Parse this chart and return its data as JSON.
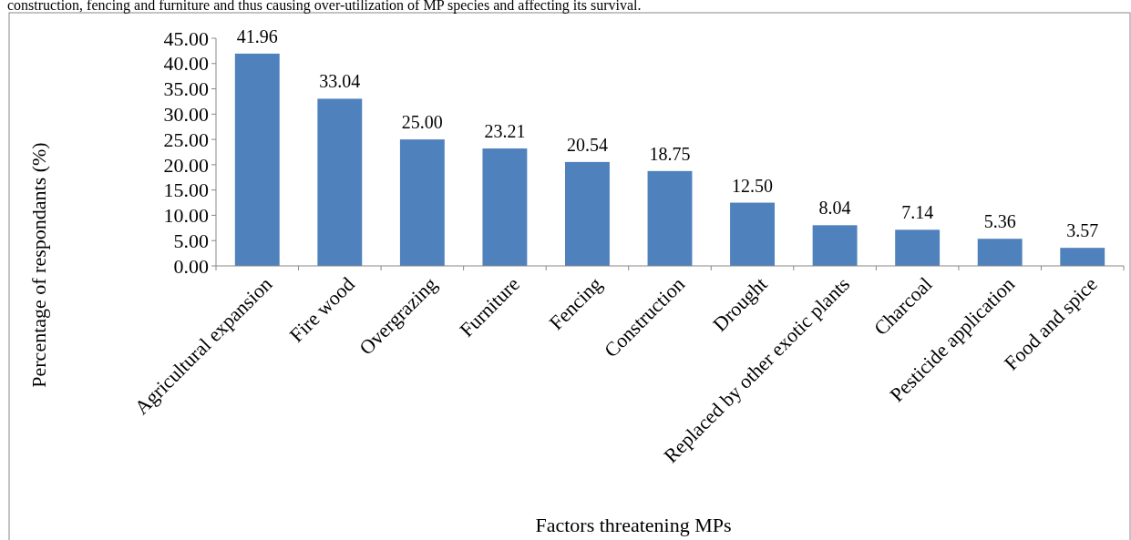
{
  "chart_data": {
    "type": "bar",
    "xlabel": "Factors threatening MPs",
    "ylabel": "Percentage of respondants (%)",
    "annotations": [
      "construction, fencing and furniture and thus causing over-utilization of MP species and affecting its survival."
    ],
    "categories": [
      "Agricultural expansion",
      "Fire wood",
      "Overgrazing",
      "Furniture",
      "Fencing",
      "Construction",
      "Drought",
      "Replaced by other exotic plants",
      "Charcoal",
      "Pesticide application",
      "Food and spice"
    ],
    "values": [
      41.96,
      33.04,
      25.0,
      23.21,
      20.54,
      18.75,
      12.5,
      8.04,
      7.14,
      5.36,
      3.57
    ],
    "value_labels": [
      "41.96",
      "33.04",
      "25.00",
      "23.21",
      "20.54",
      "18.75",
      "12.50",
      "8.04",
      "7.14",
      "5.36",
      "3.57"
    ],
    "color": "#4f81bd",
    "ylim": [
      0,
      45
    ],
    "yticks": [
      {
        "value": 0,
        "label": "0.00"
      },
      {
        "value": 5,
        "label": "5.00"
      },
      {
        "value": 10,
        "label": "10.00"
      },
      {
        "value": 15,
        "label": "15.00"
      },
      {
        "value": 20,
        "label": "20.00"
      },
      {
        "value": 25,
        "label": "25.00"
      },
      {
        "value": 30,
        "label": "30.00"
      },
      {
        "value": 35,
        "label": "35.00"
      },
      {
        "value": 40,
        "label": "40.00"
      },
      {
        "value": 45,
        "label": "45.00"
      }
    ],
    "grid": false
  }
}
